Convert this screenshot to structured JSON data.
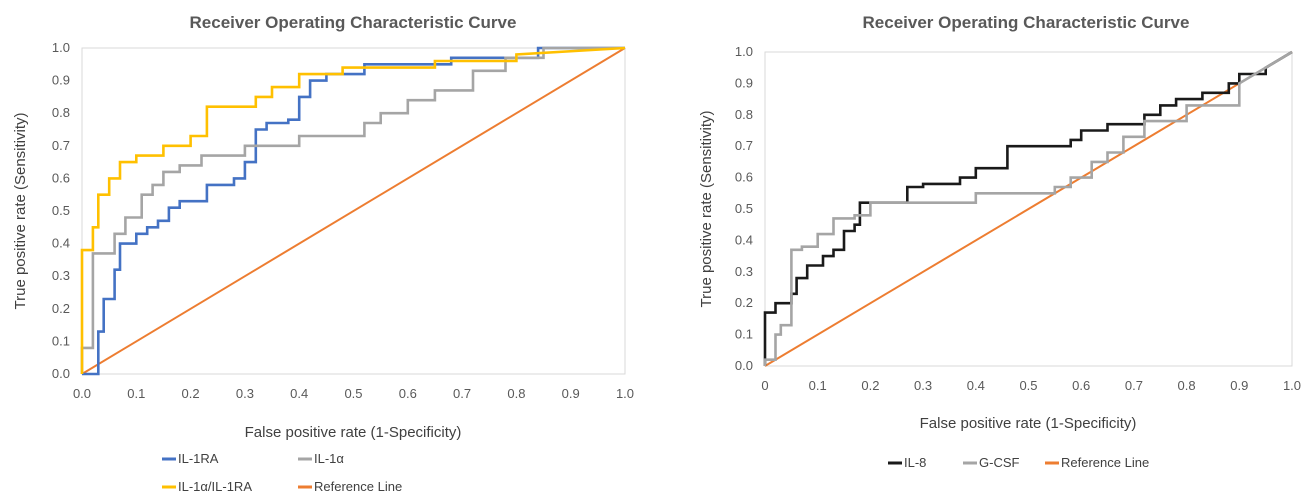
{
  "chart_data": [
    {
      "type": "line",
      "title": "Receiver Operating Characteristic Curve",
      "xlabel": "False positive rate (1-Specificity)",
      "ylabel": "True positive rate (Sensitivity)",
      "xlim": [
        0,
        1
      ],
      "ylim": [
        0,
        1
      ],
      "xticks": [
        "0.0",
        "0.1",
        "0.2",
        "0.3",
        "0.4",
        "0.5",
        "0.6",
        "0.7",
        "0.8",
        "0.9",
        "1.0"
      ],
      "yticks": [
        "0.0",
        "0.1",
        "0.2",
        "0.3",
        "0.4",
        "0.5",
        "0.6",
        "0.7",
        "0.8",
        "0.9",
        "1.0"
      ],
      "grid": false,
      "legend_position": "bottom",
      "series": [
        {
          "name": "IL-1RA",
          "color": "#4472C4",
          "x": [
            0.0,
            0.03,
            0.03,
            0.04,
            0.04,
            0.06,
            0.06,
            0.07,
            0.07,
            0.1,
            0.1,
            0.12,
            0.12,
            0.14,
            0.14,
            0.16,
            0.16,
            0.18,
            0.18,
            0.2,
            0.2,
            0.23,
            0.23,
            0.28,
            0.28,
            0.3,
            0.3,
            0.32,
            0.32,
            0.34,
            0.34,
            0.38,
            0.38,
            0.4,
            0.4,
            0.42,
            0.42,
            0.45,
            0.45,
            0.52,
            0.52,
            0.68,
            0.68,
            0.84,
            0.84,
            1.0
          ],
          "y": [
            0.0,
            0.0,
            0.13,
            0.13,
            0.23,
            0.23,
            0.32,
            0.32,
            0.4,
            0.4,
            0.43,
            0.43,
            0.45,
            0.45,
            0.47,
            0.47,
            0.51,
            0.51,
            0.53,
            0.53,
            0.53,
            0.53,
            0.58,
            0.58,
            0.6,
            0.6,
            0.65,
            0.65,
            0.75,
            0.75,
            0.77,
            0.77,
            0.78,
            0.78,
            0.85,
            0.85,
            0.9,
            0.9,
            0.92,
            0.92,
            0.95,
            0.95,
            0.97,
            0.97,
            1.0,
            1.0
          ]
        },
        {
          "name": "IL-1α",
          "color": "#A5A5A5",
          "x": [
            0.0,
            0.0,
            0.02,
            0.02,
            0.06,
            0.06,
            0.08,
            0.08,
            0.11,
            0.11,
            0.13,
            0.13,
            0.15,
            0.15,
            0.18,
            0.18,
            0.22,
            0.22,
            0.3,
            0.3,
            0.4,
            0.4,
            0.52,
            0.52,
            0.55,
            0.55,
            0.6,
            0.6,
            0.65,
            0.65,
            0.72,
            0.72,
            0.78,
            0.78,
            0.85,
            0.85,
            1.0
          ],
          "y": [
            0.0,
            0.08,
            0.08,
            0.37,
            0.37,
            0.43,
            0.43,
            0.48,
            0.48,
            0.55,
            0.55,
            0.58,
            0.58,
            0.62,
            0.62,
            0.64,
            0.64,
            0.67,
            0.67,
            0.7,
            0.7,
            0.73,
            0.73,
            0.77,
            0.77,
            0.8,
            0.8,
            0.84,
            0.84,
            0.87,
            0.87,
            0.93,
            0.93,
            0.97,
            0.97,
            1.0,
            1.0
          ]
        },
        {
          "name": "IL-1α/IL-1RA",
          "color": "#FFC000",
          "x": [
            0.0,
            0.0,
            0.02,
            0.02,
            0.03,
            0.03,
            0.05,
            0.05,
            0.07,
            0.07,
            0.1,
            0.1,
            0.15,
            0.15,
            0.2,
            0.2,
            0.23,
            0.23,
            0.32,
            0.32,
            0.35,
            0.35,
            0.4,
            0.4,
            0.48,
            0.48,
            0.65,
            0.65,
            0.8,
            0.8,
            1.0
          ],
          "y": [
            0.0,
            0.38,
            0.38,
            0.45,
            0.45,
            0.55,
            0.55,
            0.6,
            0.6,
            0.65,
            0.65,
            0.67,
            0.67,
            0.7,
            0.7,
            0.73,
            0.73,
            0.82,
            0.82,
            0.85,
            0.85,
            0.88,
            0.88,
            0.92,
            0.92,
            0.94,
            0.94,
            0.96,
            0.96,
            0.98,
            1.0
          ]
        },
        {
          "name": "Reference Line",
          "color": "#ED7D31",
          "x": [
            0.0,
            1.0
          ],
          "y": [
            0.0,
            1.0
          ]
        }
      ]
    },
    {
      "type": "line",
      "title": "Receiver Operating Characteristic Curve",
      "xlabel": "False positive rate (1-Specificity)",
      "ylabel": "True positive rate (Sensitivity)",
      "xlim": [
        0,
        1
      ],
      "ylim": [
        0,
        1
      ],
      "xticks": [
        "0",
        "0.1",
        "0.2",
        "0.3",
        "0.4",
        "0.5",
        "0.6",
        "0.7",
        "0.8",
        "0.9",
        "1.0"
      ],
      "yticks": [
        "0.0",
        "0.1",
        "0.2",
        "0.3",
        "0.4",
        "0.5",
        "0.6",
        "0.7",
        "0.8",
        "0.9",
        "1.0"
      ],
      "grid": false,
      "legend_position": "bottom",
      "series": [
        {
          "name": "IL-8",
          "color": "#1A1A1A",
          "x": [
            0.0,
            0.0,
            0.02,
            0.02,
            0.05,
            0.05,
            0.06,
            0.06,
            0.08,
            0.08,
            0.11,
            0.11,
            0.13,
            0.13,
            0.15,
            0.15,
            0.17,
            0.17,
            0.18,
            0.18,
            0.27,
            0.27,
            0.3,
            0.3,
            0.37,
            0.37,
            0.4,
            0.4,
            0.46,
            0.46,
            0.58,
            0.58,
            0.6,
            0.6,
            0.65,
            0.65,
            0.72,
            0.72,
            0.75,
            0.75,
            0.78,
            0.78,
            0.83,
            0.83,
            0.88,
            0.88,
            0.9,
            0.9,
            0.95,
            0.95,
            1.0
          ],
          "y": [
            0.0,
            0.17,
            0.17,
            0.2,
            0.2,
            0.23,
            0.23,
            0.28,
            0.28,
            0.32,
            0.32,
            0.35,
            0.35,
            0.37,
            0.37,
            0.43,
            0.43,
            0.45,
            0.45,
            0.52,
            0.52,
            0.57,
            0.57,
            0.58,
            0.58,
            0.6,
            0.6,
            0.63,
            0.63,
            0.7,
            0.7,
            0.72,
            0.72,
            0.75,
            0.75,
            0.77,
            0.77,
            0.8,
            0.8,
            0.83,
            0.83,
            0.85,
            0.85,
            0.87,
            0.87,
            0.9,
            0.9,
            0.93,
            0.93,
            0.95,
            1.0
          ]
        },
        {
          "name": "G-CSF",
          "color": "#A5A5A5",
          "x": [
            0.0,
            0.0,
            0.02,
            0.02,
            0.03,
            0.03,
            0.05,
            0.05,
            0.07,
            0.07,
            0.1,
            0.1,
            0.13,
            0.13,
            0.17,
            0.17,
            0.2,
            0.2,
            0.4,
            0.4,
            0.55,
            0.55,
            0.58,
            0.58,
            0.62,
            0.62,
            0.65,
            0.65,
            0.68,
            0.68,
            0.72,
            0.72,
            0.8,
            0.8,
            0.9,
            0.9,
            1.0
          ],
          "y": [
            0.0,
            0.02,
            0.02,
            0.1,
            0.1,
            0.13,
            0.13,
            0.37,
            0.37,
            0.38,
            0.38,
            0.42,
            0.42,
            0.47,
            0.47,
            0.48,
            0.48,
            0.52,
            0.52,
            0.55,
            0.55,
            0.57,
            0.57,
            0.6,
            0.6,
            0.65,
            0.65,
            0.68,
            0.68,
            0.73,
            0.73,
            0.78,
            0.78,
            0.83,
            0.83,
            0.9,
            1.0
          ]
        },
        {
          "name": "Reference Line",
          "color": "#ED7D31",
          "x": [
            0.0,
            1.0
          ],
          "y": [
            0.0,
            1.0
          ]
        }
      ]
    }
  ]
}
